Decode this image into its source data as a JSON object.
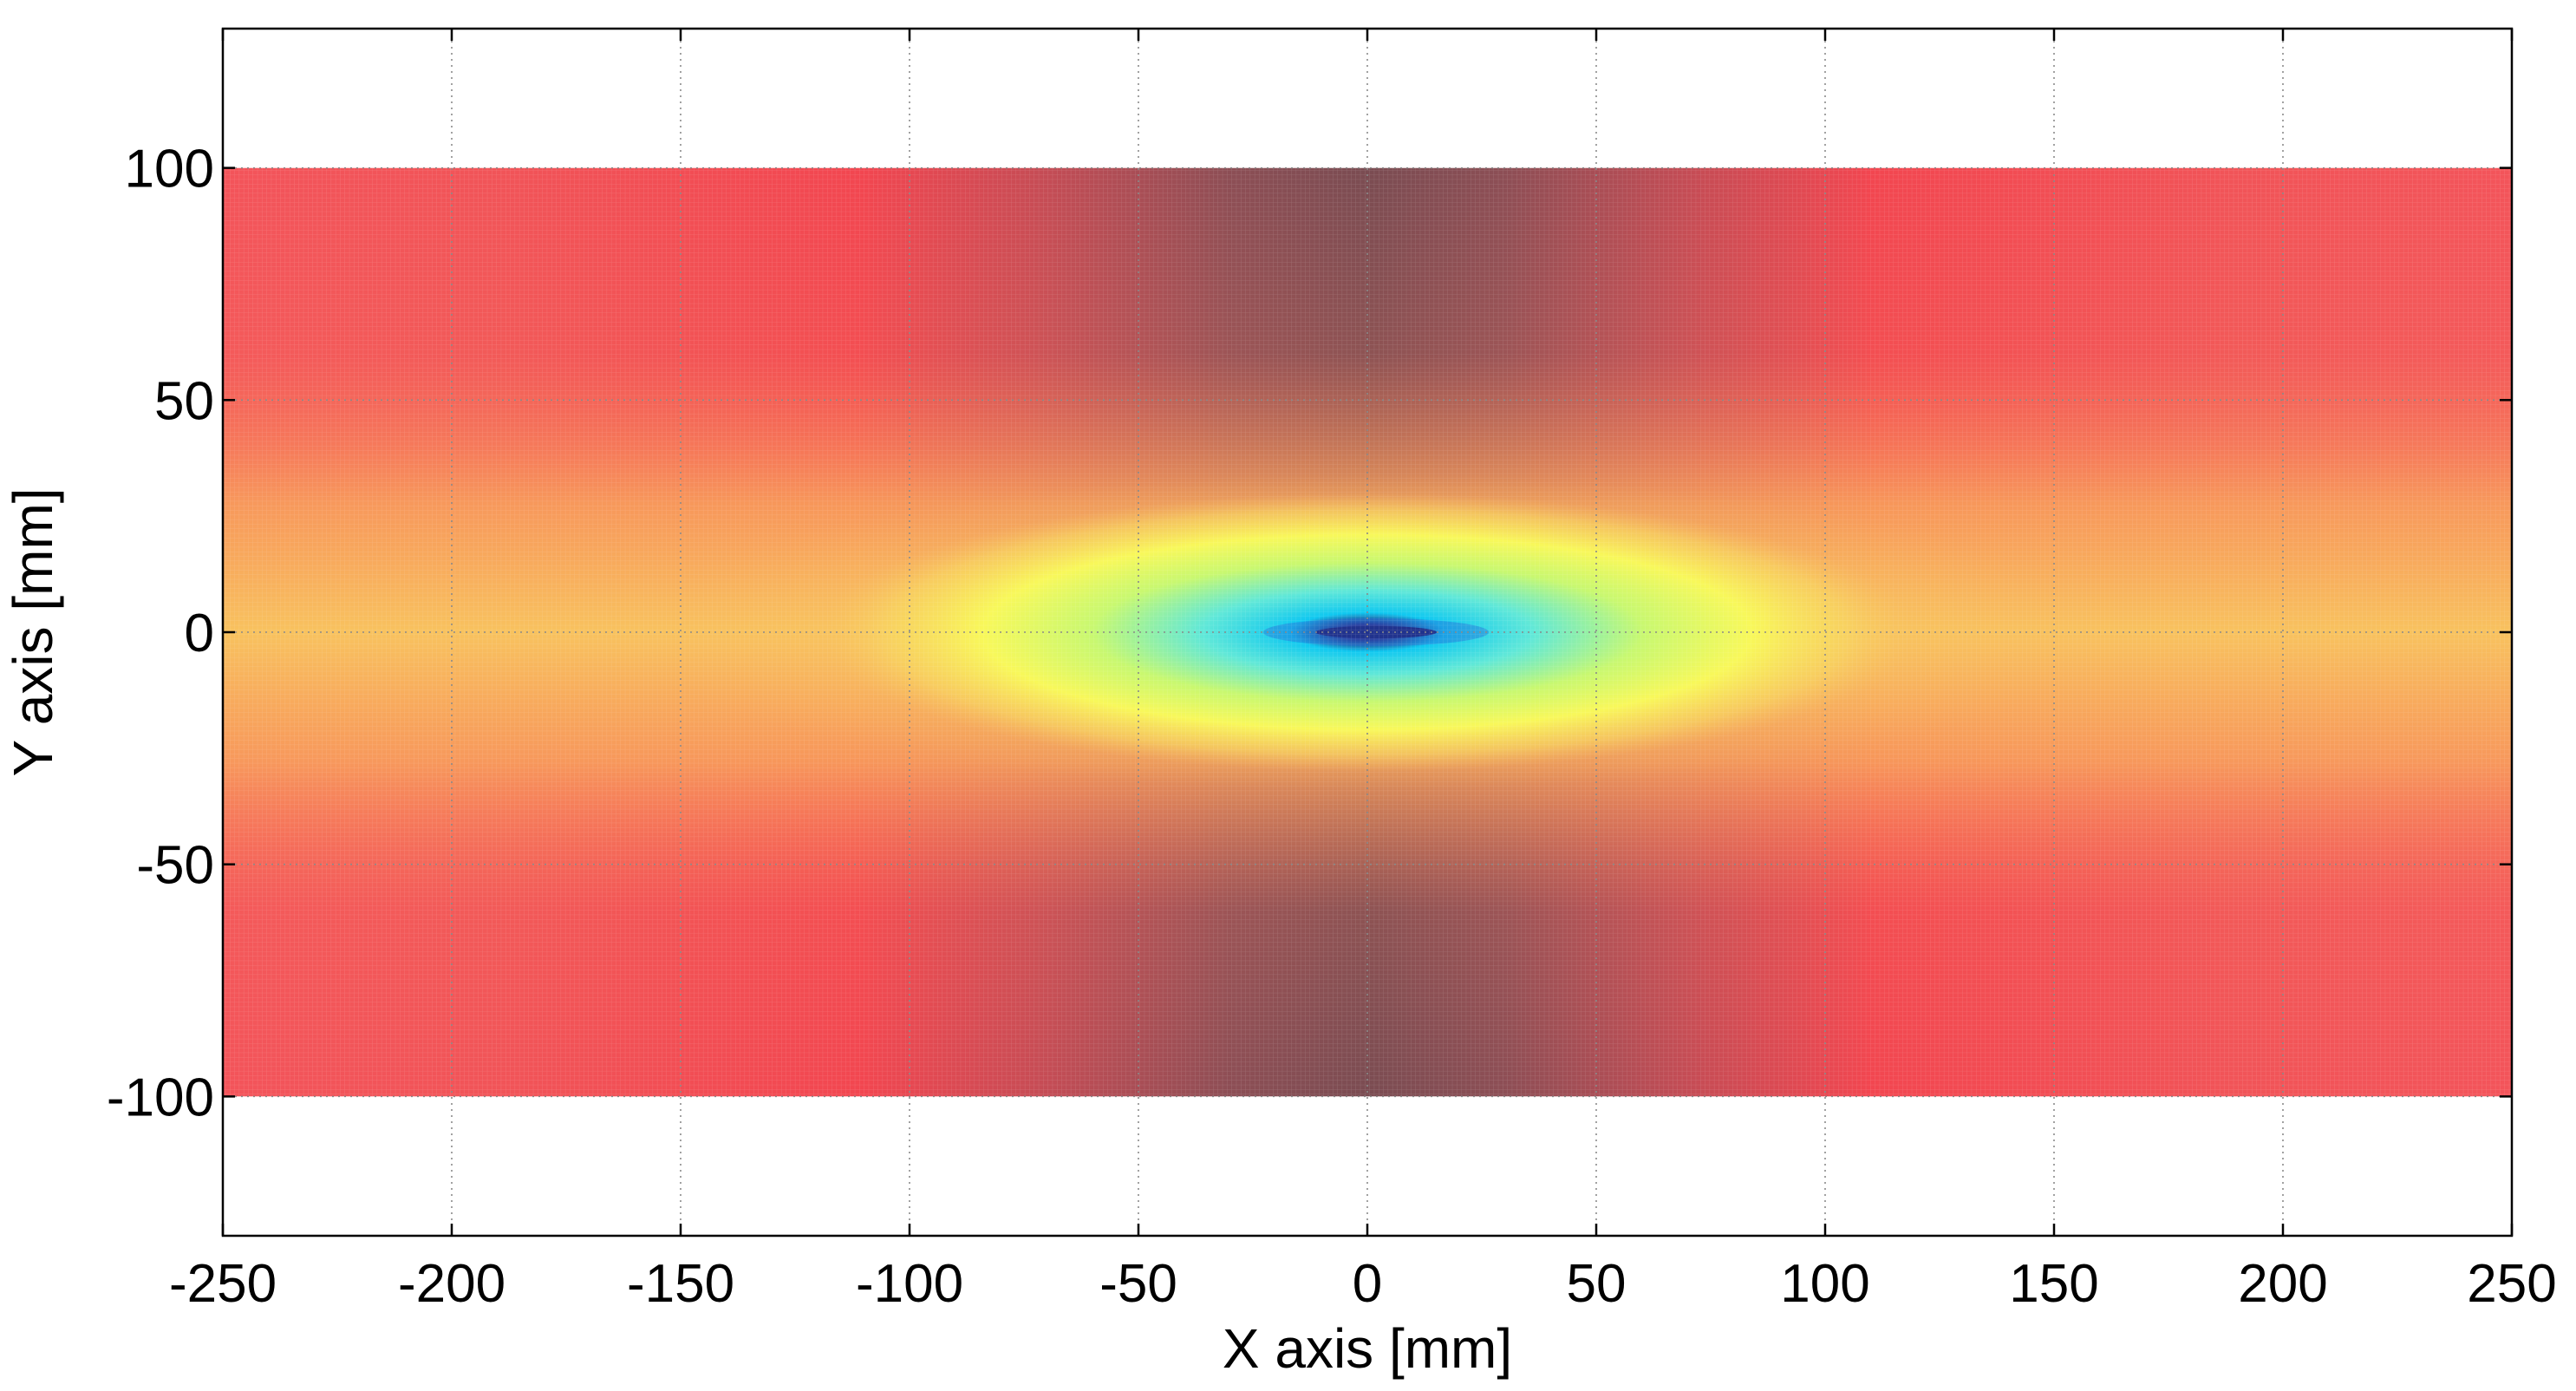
{
  "chart_data": {
    "type": "heatmap",
    "title": "",
    "xlabel": "X axis [mm]",
    "ylabel": "Y axis [mm]",
    "xlim": [
      -250,
      250
    ],
    "ylim": [
      -130,
      130
    ],
    "x_ticks": [
      -250,
      -200,
      -150,
      -100,
      -50,
      0,
      50,
      100,
      150,
      200,
      250
    ],
    "y_ticks": [
      -100,
      -50,
      0,
      50,
      100
    ],
    "x_tick_labels": [
      "-250",
      "-200",
      "-150",
      "-100",
      "-50",
      "0",
      "50",
      "100",
      "150",
      "200",
      "250"
    ],
    "y_tick_labels": [
      "-100",
      "-50",
      "0",
      "50",
      "100"
    ],
    "grid": true,
    "data_extent": {
      "x": [
        -250,
        250
      ],
      "y": [
        -100,
        100
      ]
    },
    "colormap": [
      "#00e8f0",
      "#80f0a0",
      "#f8f860",
      "#f8c060",
      "#f89060",
      "#f85050",
      "#a05050"
    ],
    "colormap_extent": [
      "#000040",
      "#00d8f0",
      "#a0f080",
      "#f8f858",
      "#f8b860",
      "#f86058"
    ],
    "colors": {
      "background": "#ffffff",
      "axis": "#000000",
      "grid": "#9a9a9a",
      "center": "#1a0050",
      "center_band": "#6a4e55",
      "mid_band": "#e84048",
      "outer": "#f8b060"
    }
  }
}
